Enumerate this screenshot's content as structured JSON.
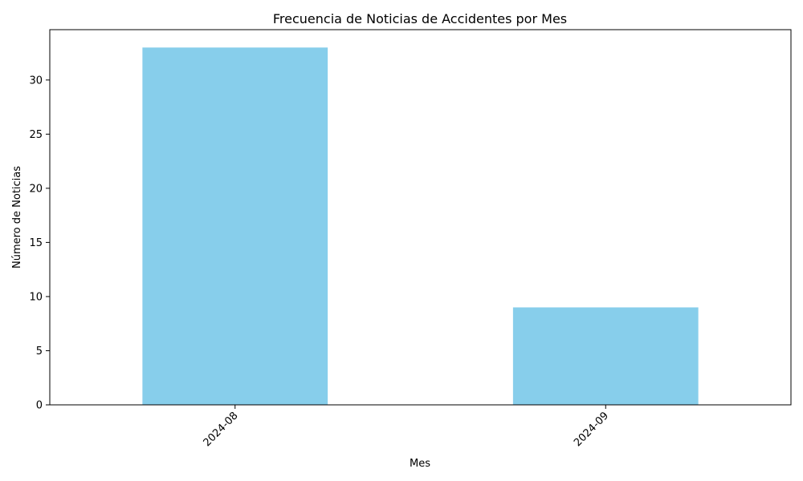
{
  "chart_data": {
    "type": "bar",
    "title": "Frecuencia de Noticias de Accidentes por Mes",
    "xlabel": "Mes",
    "ylabel": "Número de Noticias",
    "categories": [
      "2024-08",
      "2024-09"
    ],
    "values": [
      33,
      9
    ],
    "ylim": [
      0,
      34.65
    ],
    "yticks": [
      0,
      5,
      10,
      15,
      20,
      25,
      30
    ],
    "bar_color": "#87CEEB",
    "grid": false,
    "legend": "none",
    "x_tick_rotation_deg": 45
  }
}
